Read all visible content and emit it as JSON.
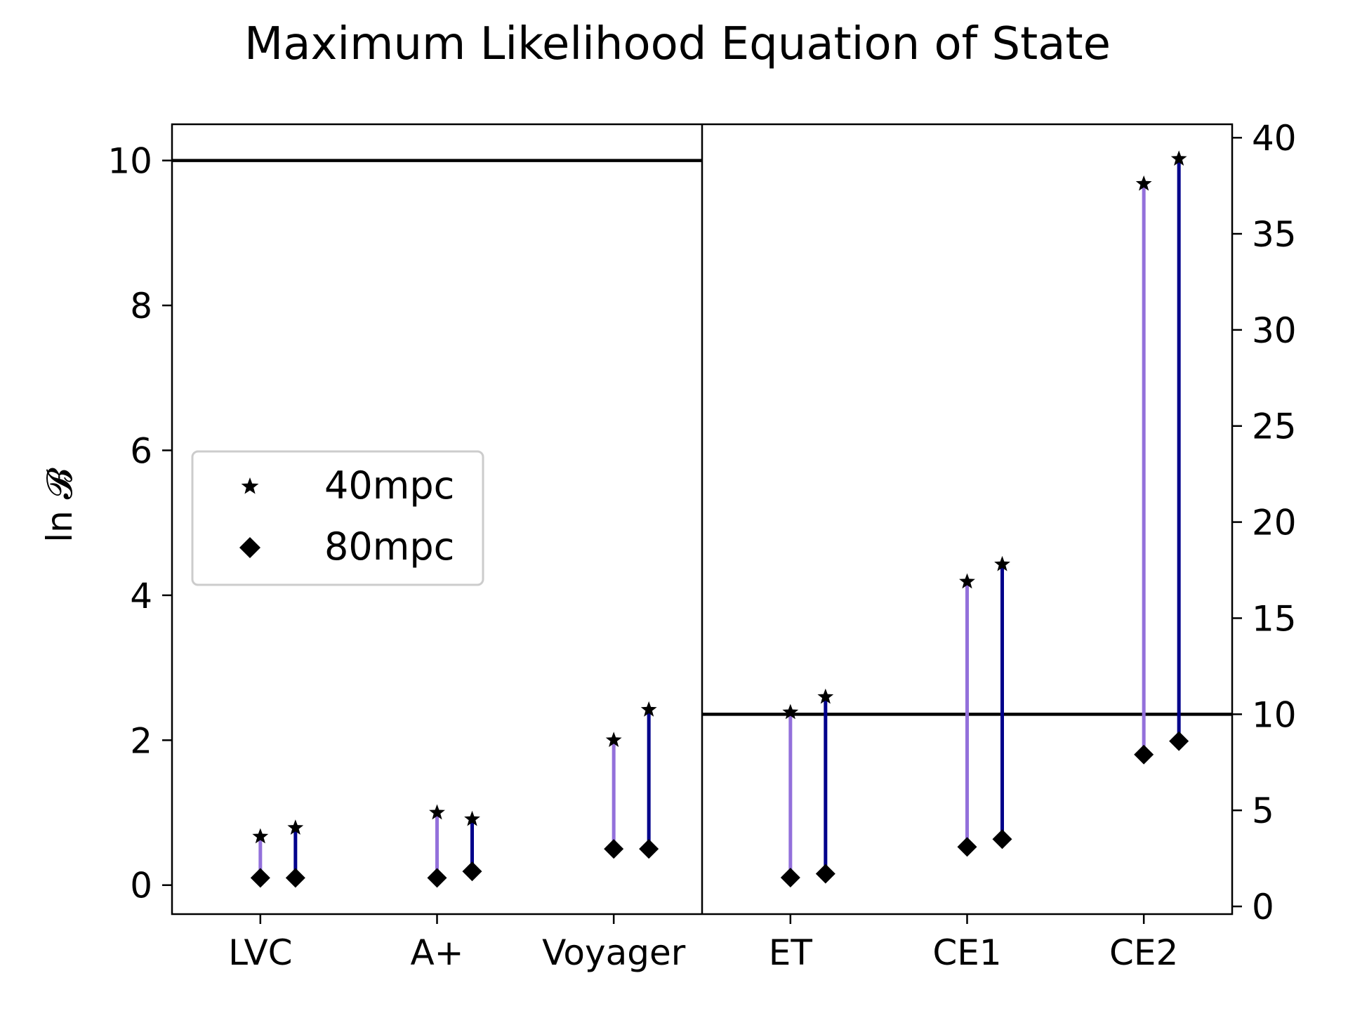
{
  "chart_data": {
    "type": "stem",
    "title": "Maximum Likelihood Equation of State",
    "ylabel": "ln 𝓑",
    "categories": [
      "LVC",
      "A+",
      "Voyager",
      "ET",
      "CE1",
      "CE2"
    ],
    "colors": {
      "light": "#9370DB",
      "dark": "#00008B",
      "axis": "#000000"
    },
    "left_panel": {
      "categories": [
        "LVC",
        "A+",
        "Voyager"
      ],
      "ylim": [
        -0.4,
        10.5
      ],
      "yticks": [
        0,
        2,
        4,
        6,
        8,
        10
      ],
      "threshold": 10,
      "stems": [
        {
          "category": "LVC",
          "series": "light",
          "top": 0.67,
          "bottom": 0.1
        },
        {
          "category": "LVC",
          "series": "dark",
          "top": 0.79,
          "bottom": 0.1
        },
        {
          "category": "A+",
          "series": "light",
          "top": 1.0,
          "bottom": 0.1
        },
        {
          "category": "A+",
          "series": "dark",
          "top": 0.91,
          "bottom": 0.19
        },
        {
          "category": "Voyager",
          "series": "light",
          "top": 2.0,
          "bottom": 0.5
        },
        {
          "category": "Voyager",
          "series": "dark",
          "top": 2.42,
          "bottom": 0.5
        }
      ]
    },
    "right_panel": {
      "categories": [
        "ET",
        "CE1",
        "CE2"
      ],
      "ylim": [
        -0.4,
        40.7
      ],
      "yticks": [
        0,
        5,
        10,
        15,
        20,
        25,
        30,
        35,
        40
      ],
      "threshold": 10,
      "stems": [
        {
          "category": "ET",
          "series": "light",
          "top": 10.1,
          "bottom": 1.5
        },
        {
          "category": "ET",
          "series": "dark",
          "top": 10.9,
          "bottom": 1.7
        },
        {
          "category": "CE1",
          "series": "light",
          "top": 16.9,
          "bottom": 3.1
        },
        {
          "category": "CE1",
          "series": "dark",
          "top": 17.8,
          "bottom": 3.5
        },
        {
          "category": "CE2",
          "series": "light",
          "top": 37.6,
          "bottom": 7.9
        },
        {
          "category": "CE2",
          "series": "dark",
          "top": 38.9,
          "bottom": 8.6
        }
      ]
    },
    "legend": {
      "location": "center-left",
      "entries": [
        {
          "marker": "star",
          "label": "40mpc"
        },
        {
          "marker": "diamond",
          "label": "80mpc"
        }
      ]
    }
  }
}
